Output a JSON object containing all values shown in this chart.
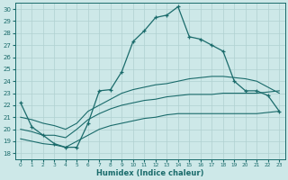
{
  "xlabel": "Humidex (Indice chaleur)",
  "xlim": [
    -0.5,
    23.5
  ],
  "ylim": [
    17.5,
    30.5
  ],
  "xticks": [
    0,
    1,
    2,
    3,
    4,
    5,
    6,
    7,
    8,
    9,
    10,
    11,
    12,
    13,
    14,
    15,
    16,
    17,
    18,
    19,
    20,
    21,
    22,
    23
  ],
  "yticks": [
    18,
    19,
    20,
    21,
    22,
    23,
    24,
    25,
    26,
    27,
    28,
    29,
    30
  ],
  "bg_color": "#cde8e8",
  "line_color": "#1a6b6b",
  "grid_color": "#b0d0d0",
  "line1_x": [
    0,
    1,
    2,
    3,
    4,
    5,
    6,
    7,
    8,
    9,
    10,
    11,
    12,
    13,
    14,
    15,
    16,
    17,
    18,
    19,
    20,
    21,
    22,
    23
  ],
  "line1_y": [
    22.2,
    20.2,
    19.5,
    18.8,
    18.5,
    18.5,
    20.5,
    23.2,
    23.3,
    24.8,
    27.3,
    28.2,
    29.3,
    29.5,
    30.2,
    27.7,
    27.5,
    27.0,
    26.5,
    24.0,
    23.2,
    23.2,
    22.8,
    21.5
  ],
  "line2_x": [
    0,
    1,
    2,
    3,
    4,
    5,
    6,
    7,
    8,
    9,
    10,
    11,
    12,
    13,
    14,
    15,
    16,
    17,
    18,
    19,
    20,
    21,
    22,
    23
  ],
  "line2_y": [
    19.2,
    19.0,
    18.8,
    18.7,
    18.5,
    19.0,
    19.5,
    20.0,
    20.3,
    20.5,
    20.7,
    20.9,
    21.0,
    21.2,
    21.3,
    21.3,
    21.3,
    21.3,
    21.3,
    21.3,
    21.3,
    21.3,
    21.4,
    21.5
  ],
  "line3_x": [
    0,
    1,
    2,
    3,
    4,
    5,
    6,
    7,
    8,
    9,
    10,
    11,
    12,
    13,
    14,
    15,
    16,
    17,
    18,
    19,
    20,
    21,
    22,
    23
  ],
  "line3_y": [
    20.0,
    19.8,
    19.5,
    19.5,
    19.3,
    20.0,
    20.8,
    21.3,
    21.7,
    22.0,
    22.2,
    22.4,
    22.5,
    22.7,
    22.8,
    22.9,
    22.9,
    22.9,
    23.0,
    23.0,
    23.0,
    23.0,
    23.1,
    23.2
  ],
  "line4_x": [
    0,
    1,
    2,
    3,
    4,
    5,
    6,
    7,
    8,
    9,
    10,
    11,
    12,
    13,
    14,
    15,
    16,
    17,
    18,
    19,
    20,
    21,
    22,
    23
  ],
  "line4_y": [
    21.0,
    20.8,
    20.5,
    20.3,
    20.0,
    20.5,
    21.5,
    22.0,
    22.5,
    23.0,
    23.3,
    23.5,
    23.7,
    23.8,
    24.0,
    24.2,
    24.3,
    24.4,
    24.4,
    24.3,
    24.2,
    24.0,
    23.5,
    23.0
  ]
}
